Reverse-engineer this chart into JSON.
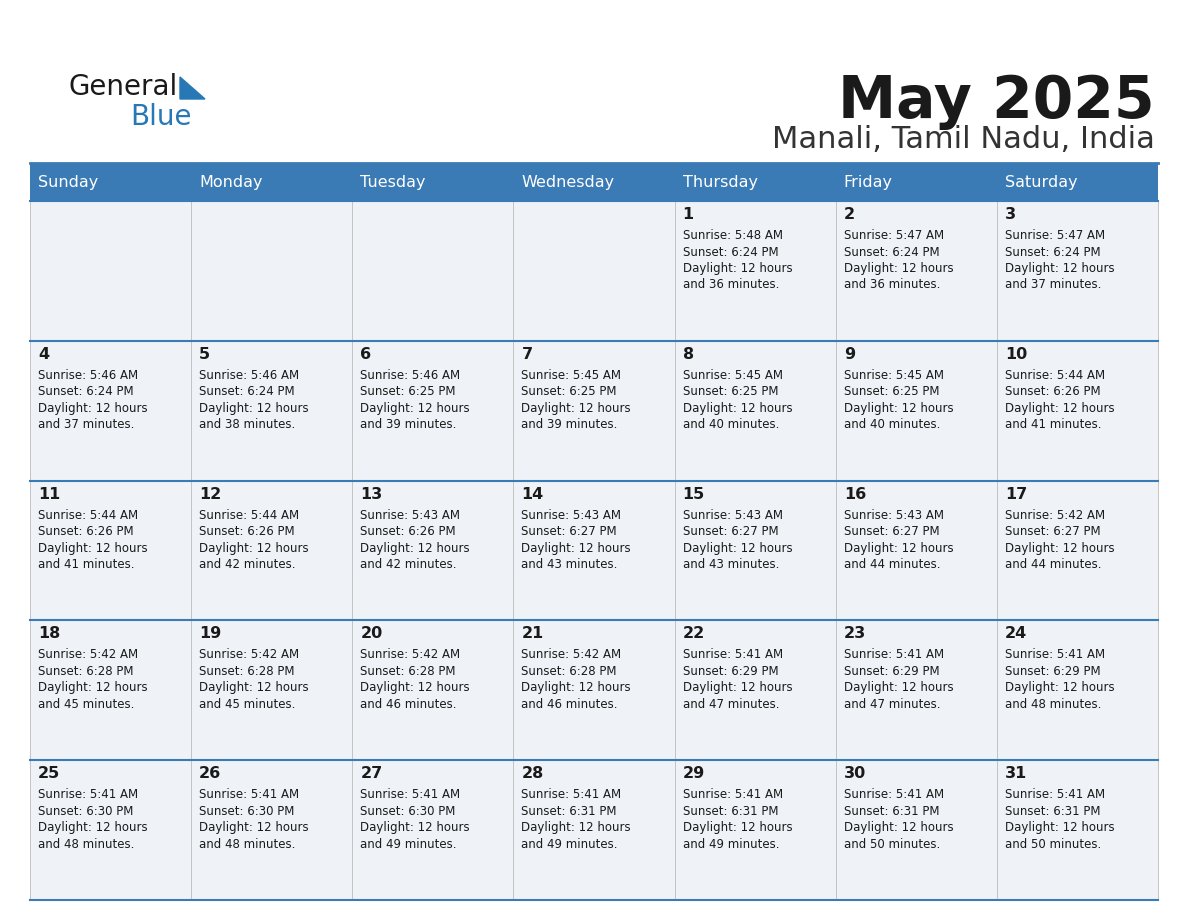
{
  "title": "May 2025",
  "subtitle": "Manali, Tamil Nadu, India",
  "header_color": "#3a7ab5",
  "header_text_color": "#ffffff",
  "cell_bg_color": "#eff3f8",
  "border_color": "#3a7ab5",
  "day_names": [
    "Sunday",
    "Monday",
    "Tuesday",
    "Wednesday",
    "Thursday",
    "Friday",
    "Saturday"
  ],
  "days": [
    {
      "day": 1,
      "col": 4,
      "row": 0,
      "sunrise": "5:48 AM",
      "sunset": "6:24 PM",
      "daylight": "12 hours and 36 minutes."
    },
    {
      "day": 2,
      "col": 5,
      "row": 0,
      "sunrise": "5:47 AM",
      "sunset": "6:24 PM",
      "daylight": "12 hours and 36 minutes."
    },
    {
      "day": 3,
      "col": 6,
      "row": 0,
      "sunrise": "5:47 AM",
      "sunset": "6:24 PM",
      "daylight": "12 hours and 37 minutes."
    },
    {
      "day": 4,
      "col": 0,
      "row": 1,
      "sunrise": "5:46 AM",
      "sunset": "6:24 PM",
      "daylight": "12 hours and 37 minutes."
    },
    {
      "day": 5,
      "col": 1,
      "row": 1,
      "sunrise": "5:46 AM",
      "sunset": "6:24 PM",
      "daylight": "12 hours and 38 minutes."
    },
    {
      "day": 6,
      "col": 2,
      "row": 1,
      "sunrise": "5:46 AM",
      "sunset": "6:25 PM",
      "daylight": "12 hours and 39 minutes."
    },
    {
      "day": 7,
      "col": 3,
      "row": 1,
      "sunrise": "5:45 AM",
      "sunset": "6:25 PM",
      "daylight": "12 hours and 39 minutes."
    },
    {
      "day": 8,
      "col": 4,
      "row": 1,
      "sunrise": "5:45 AM",
      "sunset": "6:25 PM",
      "daylight": "12 hours and 40 minutes."
    },
    {
      "day": 9,
      "col": 5,
      "row": 1,
      "sunrise": "5:45 AM",
      "sunset": "6:25 PM",
      "daylight": "12 hours and 40 minutes."
    },
    {
      "day": 10,
      "col": 6,
      "row": 1,
      "sunrise": "5:44 AM",
      "sunset": "6:26 PM",
      "daylight": "12 hours and 41 minutes."
    },
    {
      "day": 11,
      "col": 0,
      "row": 2,
      "sunrise": "5:44 AM",
      "sunset": "6:26 PM",
      "daylight": "12 hours and 41 minutes."
    },
    {
      "day": 12,
      "col": 1,
      "row": 2,
      "sunrise": "5:44 AM",
      "sunset": "6:26 PM",
      "daylight": "12 hours and 42 minutes."
    },
    {
      "day": 13,
      "col": 2,
      "row": 2,
      "sunrise": "5:43 AM",
      "sunset": "6:26 PM",
      "daylight": "12 hours and 42 minutes."
    },
    {
      "day": 14,
      "col": 3,
      "row": 2,
      "sunrise": "5:43 AM",
      "sunset": "6:27 PM",
      "daylight": "12 hours and 43 minutes."
    },
    {
      "day": 15,
      "col": 4,
      "row": 2,
      "sunrise": "5:43 AM",
      "sunset": "6:27 PM",
      "daylight": "12 hours and 43 minutes."
    },
    {
      "day": 16,
      "col": 5,
      "row": 2,
      "sunrise": "5:43 AM",
      "sunset": "6:27 PM",
      "daylight": "12 hours and 44 minutes."
    },
    {
      "day": 17,
      "col": 6,
      "row": 2,
      "sunrise": "5:42 AM",
      "sunset": "6:27 PM",
      "daylight": "12 hours and 44 minutes."
    },
    {
      "day": 18,
      "col": 0,
      "row": 3,
      "sunrise": "5:42 AM",
      "sunset": "6:28 PM",
      "daylight": "12 hours and 45 minutes."
    },
    {
      "day": 19,
      "col": 1,
      "row": 3,
      "sunrise": "5:42 AM",
      "sunset": "6:28 PM",
      "daylight": "12 hours and 45 minutes."
    },
    {
      "day": 20,
      "col": 2,
      "row": 3,
      "sunrise": "5:42 AM",
      "sunset": "6:28 PM",
      "daylight": "12 hours and 46 minutes."
    },
    {
      "day": 21,
      "col": 3,
      "row": 3,
      "sunrise": "5:42 AM",
      "sunset": "6:28 PM",
      "daylight": "12 hours and 46 minutes."
    },
    {
      "day": 22,
      "col": 4,
      "row": 3,
      "sunrise": "5:41 AM",
      "sunset": "6:29 PM",
      "daylight": "12 hours and 47 minutes."
    },
    {
      "day": 23,
      "col": 5,
      "row": 3,
      "sunrise": "5:41 AM",
      "sunset": "6:29 PM",
      "daylight": "12 hours and 47 minutes."
    },
    {
      "day": 24,
      "col": 6,
      "row": 3,
      "sunrise": "5:41 AM",
      "sunset": "6:29 PM",
      "daylight": "12 hours and 48 minutes."
    },
    {
      "day": 25,
      "col": 0,
      "row": 4,
      "sunrise": "5:41 AM",
      "sunset": "6:30 PM",
      "daylight": "12 hours and 48 minutes."
    },
    {
      "day": 26,
      "col": 1,
      "row": 4,
      "sunrise": "5:41 AM",
      "sunset": "6:30 PM",
      "daylight": "12 hours and 48 minutes."
    },
    {
      "day": 27,
      "col": 2,
      "row": 4,
      "sunrise": "5:41 AM",
      "sunset": "6:30 PM",
      "daylight": "12 hours and 49 minutes."
    },
    {
      "day": 28,
      "col": 3,
      "row": 4,
      "sunrise": "5:41 AM",
      "sunset": "6:31 PM",
      "daylight": "12 hours and 49 minutes."
    },
    {
      "day": 29,
      "col": 4,
      "row": 4,
      "sunrise": "5:41 AM",
      "sunset": "6:31 PM",
      "daylight": "12 hours and 49 minutes."
    },
    {
      "day": 30,
      "col": 5,
      "row": 4,
      "sunrise": "5:41 AM",
      "sunset": "6:31 PM",
      "daylight": "12 hours and 50 minutes."
    },
    {
      "day": 31,
      "col": 6,
      "row": 4,
      "sunrise": "5:41 AM",
      "sunset": "6:31 PM",
      "daylight": "12 hours and 50 minutes."
    }
  ],
  "num_rows": 5,
  "num_cols": 7,
  "logo_color_general": "#1a1a1a",
  "logo_color_blue": "#2878b5",
  "logo_triangle_color": "#2878b5"
}
